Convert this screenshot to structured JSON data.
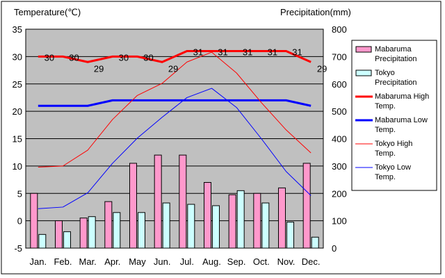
{
  "chart_data": {
    "type": "bar",
    "title": "",
    "categories": [
      "Jan.",
      "Feb.",
      "Mar.",
      "Apr.",
      "May",
      "Jun.",
      "Jul.",
      "Aug.",
      "Sep.",
      "Oct.",
      "Nov.",
      "Dec."
    ],
    "left_axis": {
      "label": "Temperature(℃)",
      "ylim": [
        -5,
        35
      ],
      "ticks": [
        -5,
        0,
        5,
        10,
        15,
        20,
        25,
        30,
        35
      ]
    },
    "right_axis": {
      "label": "Precipitation(mm)",
      "ylim": [
        0,
        800
      ],
      "ticks": [
        0,
        100,
        200,
        300,
        400,
        500,
        600,
        700,
        800
      ]
    },
    "grid": true,
    "series": [
      {
        "name": "Mabaruma Precipitation",
        "type": "bar",
        "axis": "right",
        "color": "#ff99cc",
        "values": [
          200,
          100,
          110,
          170,
          310,
          340,
          340,
          240,
          195,
          200,
          220,
          310
        ]
      },
      {
        "name": "Tokyo Precipitation",
        "type": "bar",
        "axis": "right",
        "color": "#ccffff",
        "values": [
          50,
          60,
          115,
          130,
          130,
          165,
          160,
          155,
          210,
          165,
          95,
          40
        ]
      },
      {
        "name": "Mabaruma High Temp.",
        "type": "line",
        "axis": "left",
        "color": "#ff0000",
        "width": 3,
        "show_labels": true,
        "values": [
          30,
          30,
          29,
          30,
          30,
          29,
          31,
          31,
          31,
          31,
          31,
          29
        ]
      },
      {
        "name": "Mabaruma Low Temp.",
        "type": "line",
        "axis": "left",
        "color": "#0000ff",
        "width": 3,
        "show_labels": false,
        "values": [
          21,
          21,
          21,
          22,
          22,
          22,
          22,
          22,
          22,
          22,
          22,
          21
        ]
      },
      {
        "name": "Tokyo High Temp.",
        "type": "line",
        "axis": "left",
        "color": "#ff0000",
        "width": 1,
        "show_labels": false,
        "values": [
          9.8,
          10.0,
          12.9,
          18.5,
          22.9,
          25.1,
          29.0,
          30.8,
          27.0,
          21.6,
          16.6,
          12.4
        ]
      },
      {
        "name": "Tokyo Low Temp.",
        "type": "line",
        "axis": "left",
        "color": "#0000ff",
        "width": 1,
        "show_labels": false,
        "values": [
          2.2,
          2.5,
          5.1,
          10.5,
          15.1,
          18.9,
          22.5,
          24.2,
          20.7,
          15.0,
          9.0,
          4.6
        ]
      }
    ],
    "legend": {
      "position": "right",
      "entries": [
        {
          "line1": "Mabaruma",
          "line2": "Precipitation"
        },
        {
          "line1": "Tokyo",
          "line2": "Precipitation"
        },
        {
          "line1": "Mabaruma High",
          "line2": "Temp."
        },
        {
          "line1": "Mabaruma Low",
          "line2": "Temp."
        },
        {
          "line1": "Tokyo High",
          "line2": "Temp."
        },
        {
          "line1": "Tokyo Low",
          "line2": "Temp."
        }
      ]
    }
  }
}
